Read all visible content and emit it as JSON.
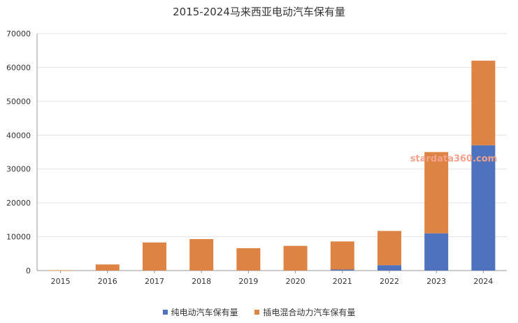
{
  "colors": {
    "bev": "#4e72be",
    "phev": "#dd8344",
    "grid": "#e3e3e3",
    "axis": "#9a9a9a",
    "watermark": "#f4a28c"
  },
  "watermark": "stardata360.com",
  "chart_data": {
    "type": "bar",
    "stacked": true,
    "title": "2015-2024马来西亚电动汽车保有量",
    "xlabel": "",
    "ylabel": "",
    "categories": [
      "2015",
      "2016",
      "2017",
      "2018",
      "2019",
      "2020",
      "2021",
      "2022",
      "2023",
      "2024"
    ],
    "series": [
      {
        "name": "纯电动汽车保有量",
        "values": [
          0,
          0,
          0,
          0,
          0,
          0,
          300,
          1600,
          11000,
          37000
        ]
      },
      {
        "name": "插电混合动力汽车保有量",
        "values": [
          100,
          1800,
          8300,
          9300,
          6600,
          7300,
          8300,
          10100,
          24000,
          25000
        ]
      }
    ],
    "ylim": [
      0,
      70000
    ],
    "yticks": [
      "0",
      "10000",
      "20000",
      "30000",
      "40000",
      "50000",
      "60000",
      "70000"
    ],
    "grid": true,
    "legend_position": "bottom"
  }
}
